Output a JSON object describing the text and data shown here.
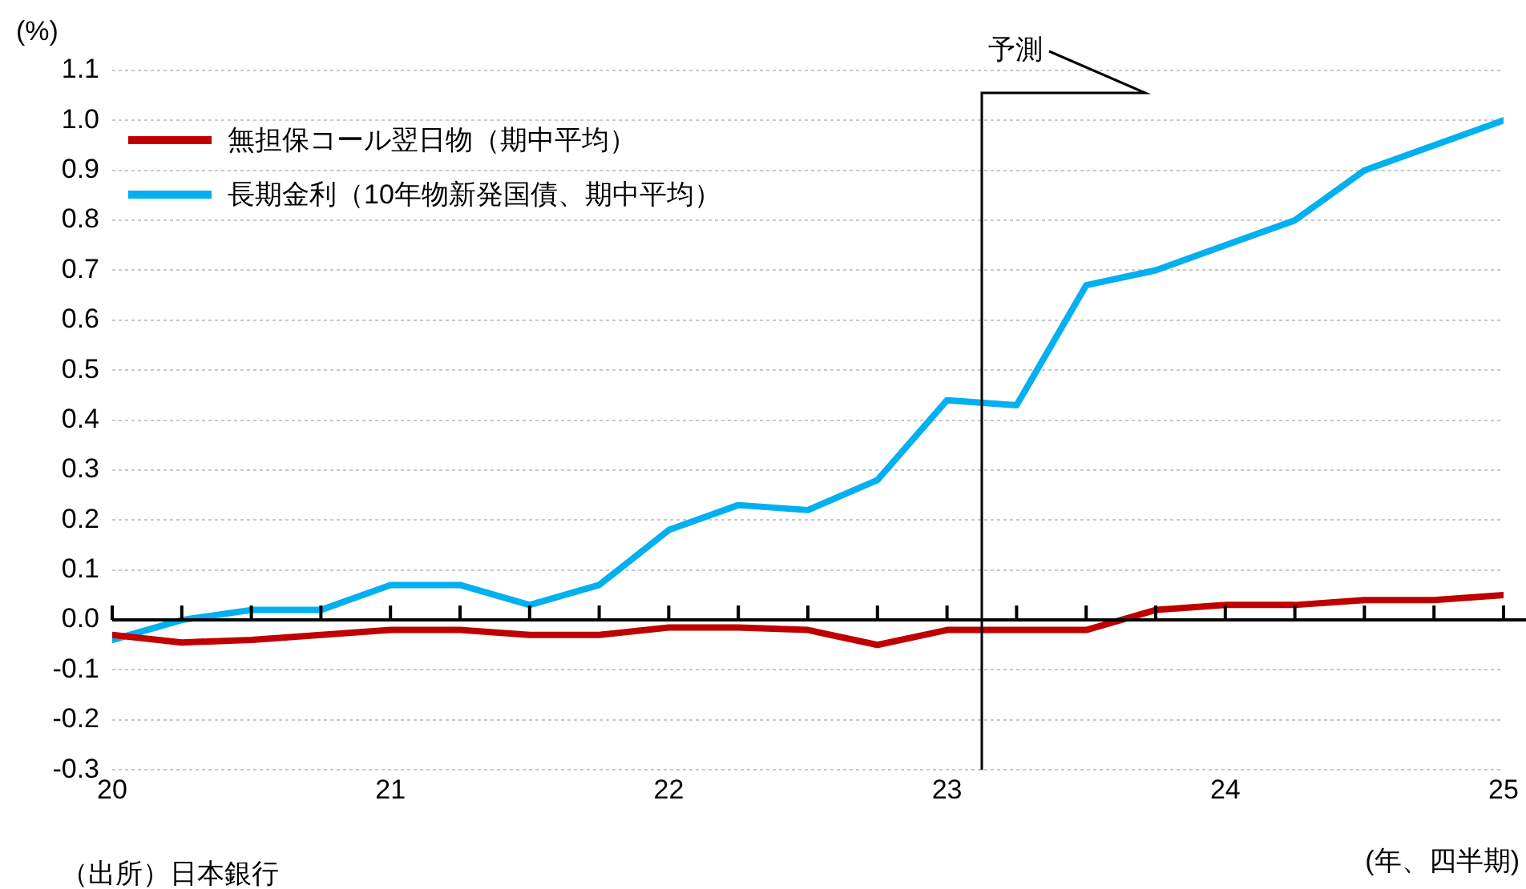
{
  "chart_data": {
    "type": "line",
    "ylabel": "(%)",
    "xlabel": "(年、四半期)",
    "x": [
      2020,
      2020.25,
      2020.5,
      2020.75,
      2021,
      2021.25,
      2021.5,
      2021.75,
      2022,
      2022.25,
      2022.5,
      2022.75,
      2023,
      2023.25,
      2023.5,
      2023.75,
      2024,
      2024.25,
      2024.5,
      2024.75,
      2025
    ],
    "series": [
      {
        "name": "無担保コール翌日物（期中平均）",
        "color": "#c00000",
        "values": [
          -0.03,
          -0.045,
          -0.04,
          -0.03,
          -0.02,
          -0.02,
          -0.03,
          -0.03,
          -0.015,
          -0.015,
          -0.02,
          -0.05,
          -0.02,
          -0.02,
          -0.02,
          0.02,
          0.03,
          0.03,
          0.04,
          0.04,
          0.05
        ]
      },
      {
        "name": "長期金利（10年物新発国債、期中平均）",
        "color": "#00b0f0",
        "values": [
          -0.04,
          0.0,
          0.02,
          0.02,
          0.07,
          0.07,
          0.03,
          0.07,
          0.18,
          0.23,
          0.22,
          0.28,
          0.44,
          0.43,
          0.67,
          0.7,
          0.75,
          0.8,
          0.9,
          0.95,
          1.0
        ]
      }
    ],
    "xlim": [
      2020,
      2025
    ],
    "xticks": [
      {
        "value": 2020,
        "label": "20"
      },
      {
        "value": 2020.25,
        "label": null
      },
      {
        "value": 2020.5,
        "label": null
      },
      {
        "value": 2020.75,
        "label": null
      },
      {
        "value": 2021,
        "label": "21"
      },
      {
        "value": 2021.25,
        "label": null
      },
      {
        "value": 2021.5,
        "label": null
      },
      {
        "value": 2021.75,
        "label": null
      },
      {
        "value": 2022,
        "label": "22"
      },
      {
        "value": 2022.25,
        "label": null
      },
      {
        "value": 2022.5,
        "label": null
      },
      {
        "value": 2022.75,
        "label": null
      },
      {
        "value": 2023,
        "label": "23"
      },
      {
        "value": 2023.25,
        "label": null
      },
      {
        "value": 2023.5,
        "label": null
      },
      {
        "value": 2023.75,
        "label": null
      },
      {
        "value": 2024,
        "label": "24"
      },
      {
        "value": 2024.25,
        "label": null
      },
      {
        "value": 2024.5,
        "label": null
      },
      {
        "value": 2024.75,
        "label": null
      },
      {
        "value": 2025,
        "label": "25"
      }
    ],
    "ylim": [
      -0.3,
      1.1
    ],
    "yticks": [
      {
        "value": -0.3,
        "label": "-0.3"
      },
      {
        "value": -0.2,
        "label": "-0.2"
      },
      {
        "value": -0.1,
        "label": "-0.1"
      },
      {
        "value": 0,
        "label": "0.0"
      },
      {
        "value": 0.1,
        "label": "0.1"
      },
      {
        "value": 0.2,
        "label": "0.2"
      },
      {
        "value": 0.3,
        "label": "0.3"
      },
      {
        "value": 0.4,
        "label": "0.4"
      },
      {
        "value": 0.5,
        "label": "0.5"
      },
      {
        "value": 0.6,
        "label": "0.6"
      },
      {
        "value": 0.7,
        "label": "0.7"
      },
      {
        "value": 0.8,
        "label": "0.8"
      },
      {
        "value": 0.9,
        "label": "0.9"
      },
      {
        "value": 1.0,
        "label": "1.0"
      },
      {
        "value": 1.1,
        "label": "1.1"
      }
    ],
    "ref_lines": [
      {
        "axis": "x",
        "value": 2023.125,
        "label": "予測",
        "color": "#000000"
      }
    ],
    "annotations": [
      "（出所）日本銀行"
    ],
    "grid": "y",
    "legend": "top left",
    "marker": "none",
    "line_style": "solid"
  }
}
